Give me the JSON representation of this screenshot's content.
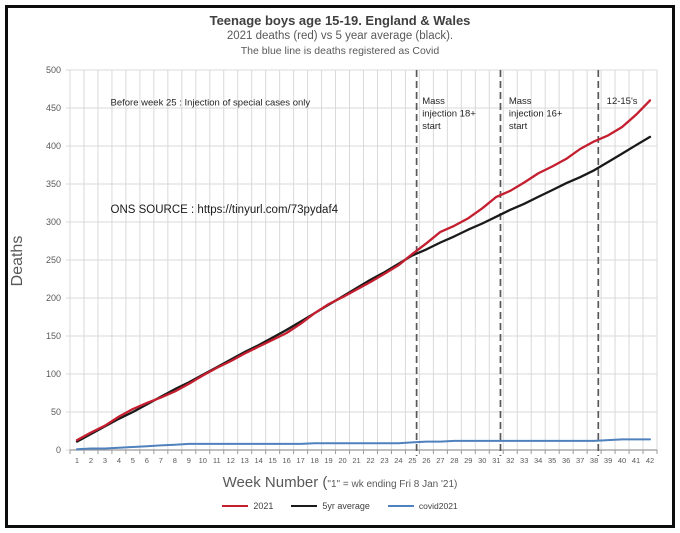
{
  "chart_data": {
    "type": "line",
    "title": "Teenage boys age 15-19. England & Wales",
    "subtitle": "2021 deaths (red) vs 5 year average (black).",
    "subtitle2": "The blue line is deaths registered as Covid",
    "ylabel": "Deaths",
    "xlabel_main": "Week Number (",
    "xlabel_note": "\"1\" = wk ending Fri 8 Jan '21)",
    "x": [
      1,
      2,
      3,
      4,
      5,
      6,
      7,
      8,
      9,
      10,
      11,
      12,
      13,
      14,
      15,
      16,
      17,
      18,
      19,
      20,
      21,
      22,
      23,
      24,
      25,
      26,
      27,
      28,
      29,
      30,
      31,
      32,
      33,
      34,
      35,
      36,
      37,
      38,
      39,
      40,
      41,
      42
    ],
    "ylim": [
      0,
      500
    ],
    "ytick_step": 50,
    "grid": true,
    "legend_position": "bottom",
    "series": [
      {
        "name": "2021",
        "color": "#c41e2f",
        "width": 2.3,
        "values": [
          13,
          23,
          32,
          44,
          54,
          62,
          69,
          77,
          87,
          98,
          108,
          117,
          127,
          136,
          145,
          154,
          166,
          180,
          192,
          201,
          211,
          221,
          232,
          243,
          258,
          272,
          287,
          295,
          305,
          318,
          333,
          341,
          352,
          364,
          373,
          383,
          396,
          406,
          414,
          425,
          441,
          460
        ]
      },
      {
        "name": "5yr average",
        "color": "#1a1a1a",
        "width": 2.3,
        "values": [
          11,
          21,
          31,
          41,
          50,
          60,
          70,
          80,
          89,
          99,
          109,
          119,
          129,
          138,
          148,
          158,
          169,
          180,
          191,
          202,
          213,
          224,
          234,
          245,
          256,
          264,
          273,
          281,
          290,
          298,
          307,
          316,
          324,
          333,
          342,
          351,
          359,
          368,
          379,
          390,
          401,
          412
        ]
      },
      {
        "name": "covid2021",
        "color": "#4f81bd",
        "width": 2,
        "values": [
          1,
          2,
          2,
          3,
          4,
          5,
          6,
          7,
          8,
          8,
          8,
          8,
          8,
          8,
          8,
          8,
          8,
          9,
          9,
          9,
          9,
          9,
          9,
          9,
          10,
          11,
          11,
          12,
          12,
          12,
          12,
          12,
          12,
          12,
          12,
          12,
          12,
          12,
          13,
          14,
          14,
          14
        ]
      }
    ],
    "vlines": [
      25,
      31,
      38
    ],
    "annotations": [
      {
        "name": "note-before-week-25",
        "lines": [
          "Before week 25 : Injection of special cases only"
        ],
        "week": 3.4,
        "value": 453,
        "size": 9.5,
        "color": "#262626"
      },
      {
        "name": "note-mass-injection-18",
        "lines": [
          "Mass",
          "injection 18+",
          "start"
        ],
        "week": 25.7,
        "value": 455,
        "size": 9.5,
        "color": "#262626"
      },
      {
        "name": "note-mass-injection-16",
        "lines": [
          "Mass",
          "injection 16+",
          "start"
        ],
        "week": 31.9,
        "value": 455,
        "size": 9.5,
        "color": "#262626"
      },
      {
        "name": "note-12-15s",
        "lines": [
          "12-15's"
        ],
        "week": 38.9,
        "value": 455,
        "size": 9.5,
        "color": "#262626"
      },
      {
        "name": "note-ons-source",
        "lines": [
          "ONS SOURCE : https://tinyurl.com/73pydaf4"
        ],
        "week": 3.4,
        "value": 312,
        "size": 11.5,
        "color": "#1a1a1a"
      }
    ],
    "colors": {
      "gridline": "#d9d9d9",
      "axis": "#9a9a9a",
      "tick_label": "#595959",
      "dashed_line": "#595959"
    }
  }
}
